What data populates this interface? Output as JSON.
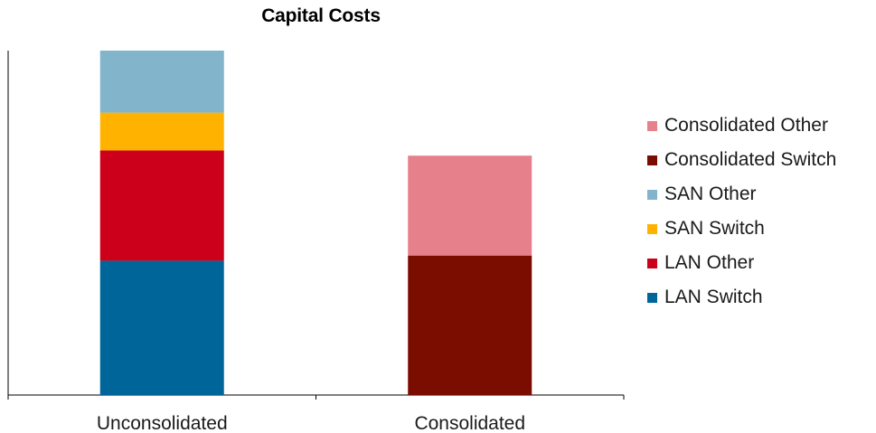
{
  "chart_data": {
    "type": "bar",
    "stacked": true,
    "title": "Capital Costs",
    "xlabel": "",
    "ylabel": "",
    "categories": [
      "Unconsolidated",
      "Consolidated"
    ],
    "ylim": [
      0,
      100
    ],
    "series": [
      {
        "name": "LAN Switch",
        "color": "#006699",
        "values": [
          39,
          0
        ]
      },
      {
        "name": "LAN Other",
        "color": "#cc001a",
        "values": [
          32,
          0
        ]
      },
      {
        "name": "SAN Switch",
        "color": "#ffb300",
        "values": [
          11,
          0
        ]
      },
      {
        "name": "SAN Other",
        "color": "#82b4cc",
        "values": [
          18,
          0
        ]
      },
      {
        "name": "Consolidated Switch",
        "color": "#7a0d00",
        "values": [
          0,
          40.5
        ]
      },
      {
        "name": "Consolidated Other",
        "color": "#e6808a",
        "values": [
          0,
          29
        ]
      }
    ],
    "legend_order": [
      "Consolidated Other",
      "Consolidated Switch",
      "SAN Other",
      "SAN Switch",
      "LAN Other",
      "LAN Switch"
    ],
    "legend_position": "right",
    "grid": false
  }
}
